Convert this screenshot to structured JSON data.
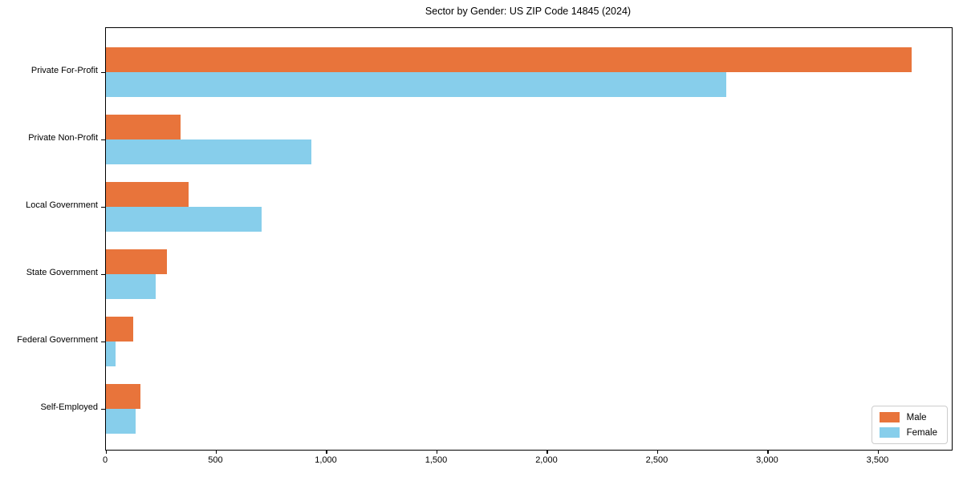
{
  "chart_data": {
    "type": "bar",
    "orientation": "horizontal",
    "title": "Sector by Gender: US ZIP Code 14845 (2024)",
    "categories": [
      "Private For-Profit",
      "Private Non-Profit",
      "Local Government",
      "State Government",
      "Federal Government",
      "Self-Employed"
    ],
    "series": [
      {
        "name": "Male",
        "color": "#E8743B",
        "values": [
          3650,
          340,
          375,
          275,
          125,
          155
        ]
      },
      {
        "name": "Female",
        "color": "#87CEEB",
        "values": [
          2810,
          930,
          705,
          225,
          45,
          135
        ]
      }
    ],
    "xlabel": "",
    "ylabel": "",
    "xlim": [
      0,
      3833
    ],
    "xticks": {
      "values": [
        0,
        500,
        1000,
        1500,
        2000,
        2500,
        3000,
        3500
      ],
      "labels": [
        "0",
        "500",
        "1,000",
        "1,500",
        "2,000",
        "2,500",
        "3,000",
        "3,500"
      ]
    },
    "grid": false,
    "legend": {
      "position": "lower right"
    }
  }
}
